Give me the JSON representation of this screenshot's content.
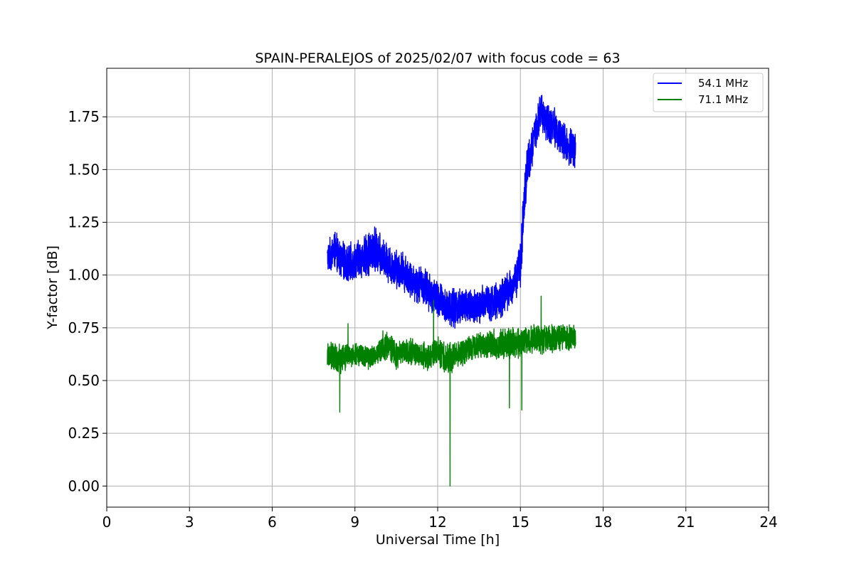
{
  "chart_data": {
    "type": "line",
    "title": "SPAIN-PERALEJOS of 2025/02/07 with focus code = 63",
    "xlabel": "Universal Time [h]",
    "ylabel": "Y-factor [dB]",
    "xlim": [
      0,
      24
    ],
    "ylim": [
      -0.1,
      1.98
    ],
    "xticks": [
      0,
      3,
      6,
      9,
      12,
      15,
      18,
      21,
      24
    ],
    "xtick_labels": [
      "0",
      "3",
      "6",
      "9",
      "12",
      "15",
      "18",
      "21",
      "24"
    ],
    "yticks": [
      0.0,
      0.25,
      0.5,
      0.75,
      1.0,
      1.25,
      1.5,
      1.75
    ],
    "ytick_labels": [
      "0.00",
      "0.25",
      "0.50",
      "0.75",
      "1.00",
      "1.25",
      "1.50",
      "1.75"
    ],
    "grid": true,
    "legend": "top-right",
    "series": [
      {
        "name": "54.1 MHz",
        "color": "#0000ff",
        "x": [
          8.0,
          8.25,
          8.5,
          8.75,
          9.0,
          9.25,
          9.5,
          9.75,
          10.0,
          10.25,
          10.5,
          10.75,
          11.0,
          11.25,
          11.5,
          11.75,
          12.0,
          12.25,
          12.5,
          12.75,
          13.0,
          13.25,
          13.5,
          13.75,
          14.0,
          14.25,
          14.5,
          14.75,
          15.0,
          15.1,
          15.25,
          15.5,
          15.75,
          16.0,
          16.25,
          16.5,
          16.75,
          17.0
        ],
        "center": [
          1.08,
          1.12,
          1.07,
          1.05,
          1.07,
          1.08,
          1.1,
          1.12,
          1.08,
          1.05,
          1.03,
          1.02,
          0.98,
          0.96,
          0.95,
          0.91,
          0.88,
          0.86,
          0.84,
          0.85,
          0.86,
          0.85,
          0.84,
          0.88,
          0.87,
          0.88,
          0.92,
          0.95,
          1.05,
          1.28,
          1.52,
          1.65,
          1.78,
          1.72,
          1.7,
          1.65,
          1.6,
          1.6
        ],
        "spread": [
          0.08,
          0.1,
          0.1,
          0.1,
          0.1,
          0.1,
          0.12,
          0.12,
          0.1,
          0.1,
          0.1,
          0.1,
          0.1,
          0.1,
          0.1,
          0.1,
          0.1,
          0.1,
          0.1,
          0.1,
          0.1,
          0.1,
          0.1,
          0.1,
          0.1,
          0.1,
          0.1,
          0.1,
          0.12,
          0.15,
          0.12,
          0.1,
          0.1,
          0.1,
          0.1,
          0.1,
          0.1,
          0.1
        ]
      },
      {
        "name": "71.1 MHz",
        "color": "#008000",
        "x": [
          8.0,
          8.25,
          8.5,
          8.75,
          9.0,
          9.25,
          9.5,
          9.75,
          10.0,
          10.25,
          10.5,
          10.75,
          11.0,
          11.25,
          11.5,
          11.75,
          12.0,
          12.25,
          12.5,
          12.75,
          13.0,
          13.25,
          13.5,
          13.75,
          14.0,
          14.25,
          14.5,
          14.75,
          15.0,
          15.25,
          15.5,
          15.75,
          16.0,
          16.25,
          16.5,
          16.75,
          17.0
        ],
        "center": [
          0.62,
          0.61,
          0.6,
          0.62,
          0.62,
          0.62,
          0.61,
          0.62,
          0.66,
          0.67,
          0.62,
          0.64,
          0.64,
          0.62,
          0.62,
          0.61,
          0.64,
          0.61,
          0.6,
          0.63,
          0.64,
          0.66,
          0.66,
          0.67,
          0.67,
          0.67,
          0.68,
          0.68,
          0.68,
          0.69,
          0.7,
          0.69,
          0.7,
          0.7,
          0.7,
          0.7,
          0.71
        ],
        "spread": [
          0.06,
          0.08,
          0.08,
          0.06,
          0.06,
          0.06,
          0.06,
          0.06,
          0.08,
          0.08,
          0.07,
          0.07,
          0.07,
          0.07,
          0.07,
          0.07,
          0.08,
          0.08,
          0.08,
          0.07,
          0.07,
          0.07,
          0.07,
          0.07,
          0.08,
          0.08,
          0.08,
          0.08,
          0.08,
          0.07,
          0.07,
          0.07,
          0.07,
          0.07,
          0.07,
          0.07,
          0.07
        ],
        "extremes": [
          {
            "x": 8.45,
            "y": 0.35
          },
          {
            "x": 8.75,
            "y": 0.77
          },
          {
            "x": 11.85,
            "y": 0.88
          },
          {
            "x": 12.45,
            "y": 0.0
          },
          {
            "x": 14.6,
            "y": 0.37
          },
          {
            "x": 15.05,
            "y": 0.36
          },
          {
            "x": 15.75,
            "y": 0.9
          }
        ]
      }
    ]
  }
}
